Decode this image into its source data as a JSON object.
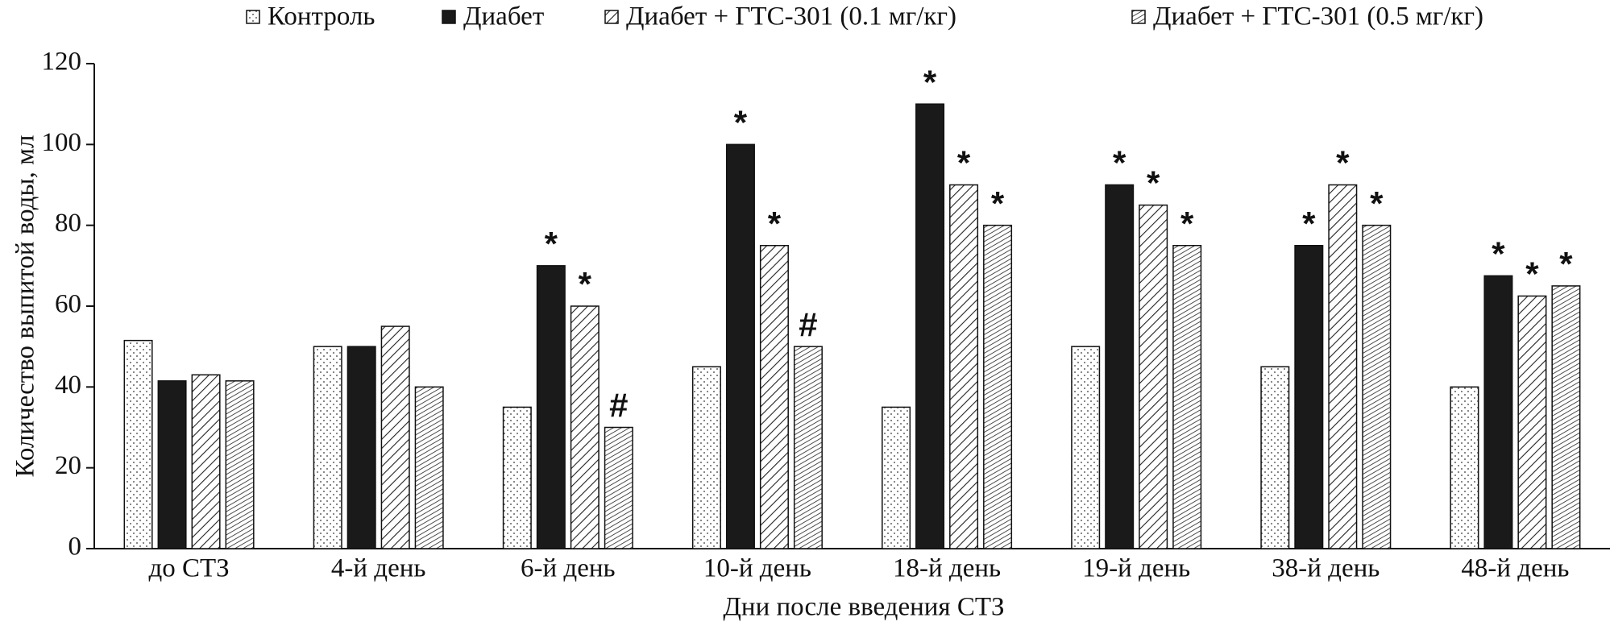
{
  "chart_data": {
    "type": "bar",
    "x_label": "Дни после введения СТЗ",
    "y_label": "Количество выпитой воды, мл",
    "categories": [
      "до СТЗ",
      "4-й день",
      "6-й день",
      "10-й день",
      "18-й день",
      "19-й день",
      "38-й день",
      "48-й день"
    ],
    "series": [
      {
        "name": "Контроль",
        "color": "#ffffff",
        "pattern": "dots",
        "values": [
          51.5,
          50,
          35,
          45,
          35,
          50,
          45,
          40
        ],
        "annotations": [
          null,
          null,
          null,
          null,
          null,
          null,
          null,
          null
        ]
      },
      {
        "name": "Диабет",
        "color": "#1a1a1a",
        "pattern": "solid",
        "values": [
          41.5,
          50,
          70,
          100,
          110,
          90,
          75,
          67.5
        ],
        "annotations": [
          null,
          null,
          "*",
          "*",
          "*",
          "*",
          "*",
          "*"
        ]
      },
      {
        "name": "Диабет + ГТС-301 (0.1 мг/кг)",
        "color": "#ffffff",
        "pattern": "diagonal",
        "values": [
          43,
          55,
          60,
          75,
          90,
          85,
          90,
          62.5
        ],
        "annotations": [
          null,
          null,
          "*",
          "*",
          "*",
          "*",
          "*",
          "*"
        ]
      },
      {
        "name": "Диабет + ГТС-301 (0.5 мг/кг)",
        "color": "#ffffff",
        "pattern": "dense-diagonal",
        "values": [
          41.5,
          40,
          30,
          50,
          80,
          75,
          80,
          65
        ],
        "annotations": [
          null,
          null,
          "#",
          "#",
          "*",
          "*",
          "*",
          "*"
        ]
      }
    ],
    "ylim": [
      0,
      120
    ],
    "yticks": [
      0,
      20,
      40,
      60,
      80,
      100,
      120
    ],
    "grid": false,
    "legend": "top"
  }
}
